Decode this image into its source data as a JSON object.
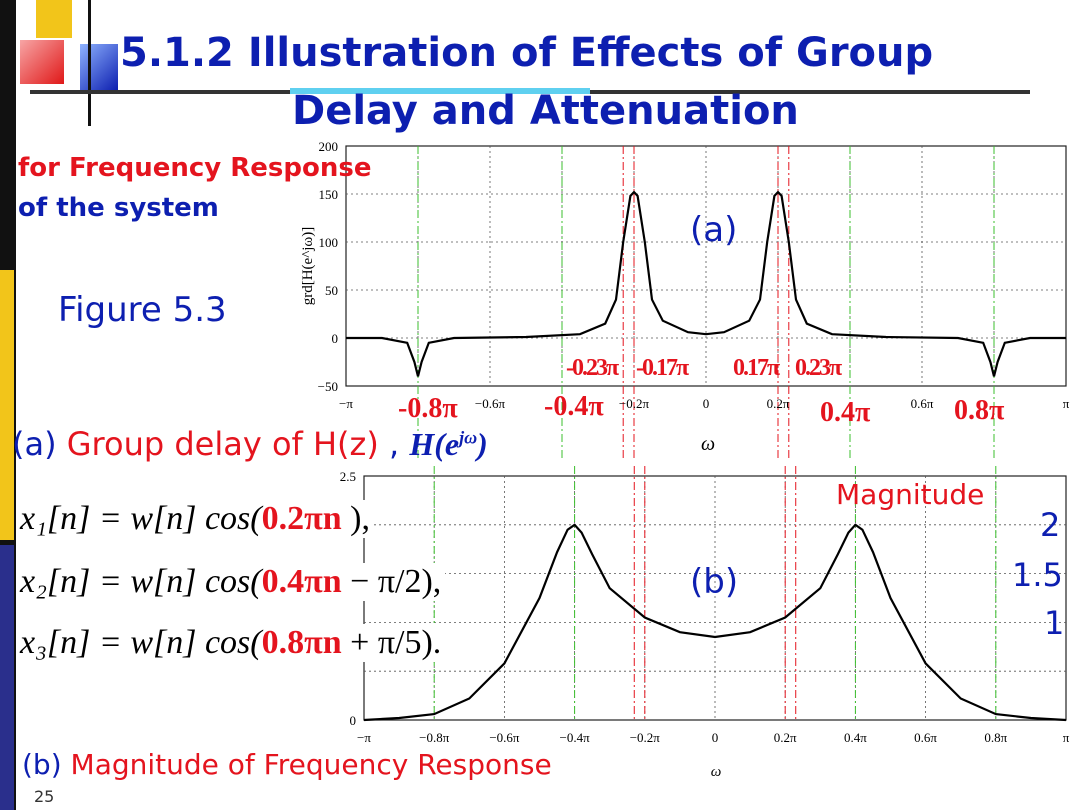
{
  "slide": {
    "title_line1": "5.1.2  Illustration of Effects of Group",
    "title_line2": "Delay and Attenuation",
    "subtitle_red": "for Frequency Response",
    "subtitle_blue": "of the system",
    "figure_label": "Figure 5.3",
    "caption_a_prefix": "(a)",
    "caption_a_text": "Group delay of H(z)",
    "caption_a_comma": ",",
    "caption_a_math": "H(e",
    "caption_a_sup": "jω",
    "caption_a_close": ")",
    "caption_b_prefix": "(b)",
    "caption_b_text": "Magnitude of Frequency Response",
    "page_number": "25",
    "colors": {
      "title": "#0d1fb0",
      "red": "#e4141e",
      "curve": "#000000",
      "guide_red": "#e4141e",
      "guide_green": "#3bbf2c"
    }
  },
  "equations": [
    {
      "lhs": "x₁[n] = w[n] cos(",
      "freq": "0.2πn",
      "rest": " ),"
    },
    {
      "lhs": "x₂[n] = w[n] cos(",
      "freq": "0.4πn",
      "rest": " − π/2),"
    },
    {
      "lhs": "x₃[n] = w[n] cos(",
      "freq": "0.8πn",
      "rest": " + π/5)."
    }
  ],
  "plot_a": {
    "panel_label": "(a)",
    "ylabel": "grd[H(e^jω)]",
    "xlabel": "ω",
    "y_ticks": [
      "200",
      "150",
      "100",
      "50",
      "0",
      "−50"
    ],
    "x_ticks": [
      "−π",
      "−0.6π",
      "−0.2π",
      "0",
      "0.2π",
      "0.6π",
      "π"
    ],
    "x_red_labels": [
      "-0.8π",
      "-0.4π",
      "0.4π",
      "0.8π"
    ],
    "guide_labels": [
      "-0.23π",
      "-0.17π",
      "0.17π",
      "0.23π"
    ]
  },
  "plot_b": {
    "panel_label": "(b)",
    "magnitude_label": "Magnitude",
    "right_ticks": [
      "2",
      "1.5",
      "1"
    ],
    "y_ticks": [
      "2.5",
      "0"
    ],
    "x_ticks": [
      "−π",
      "−0.8π",
      "−0.6π",
      "−0.4π",
      "−0.2π",
      "0",
      "0.2π",
      "0.4π",
      "0.6π",
      "0.8π",
      "π"
    ],
    "xlabel": "ω"
  },
  "chart_data": [
    {
      "type": "line",
      "name": "group delay",
      "xlabel": "ω",
      "ylabel": "grd[H(e^jω)]",
      "ylim": [
        -50,
        200
      ],
      "x_unit": "π",
      "x": [
        -1.0,
        -0.9,
        -0.83,
        -0.81,
        -0.8,
        -0.79,
        -0.77,
        -0.7,
        -0.5,
        -0.35,
        -0.28,
        -0.25,
        -0.23,
        -0.21,
        -0.2,
        -0.19,
        -0.17,
        -0.15,
        -0.12,
        -0.05,
        0,
        0.05,
        0.12,
        0.15,
        0.17,
        0.19,
        0.2,
        0.21,
        0.23,
        0.25,
        0.28,
        0.35,
        0.5,
        0.7,
        0.77,
        0.79,
        0.8,
        0.81,
        0.83,
        0.9,
        1.0
      ],
      "y": [
        0,
        0,
        -5,
        -25,
        -40,
        -25,
        -5,
        0,
        1,
        4,
        15,
        40,
        100,
        148,
        152,
        148,
        100,
        40,
        18,
        6,
        4,
        6,
        18,
        40,
        100,
        148,
        152,
        148,
        100,
        40,
        15,
        4,
        1,
        0,
        -5,
        -25,
        -40,
        -25,
        -5,
        0,
        0
      ],
      "grid": true
    },
    {
      "type": "line",
      "name": "magnitude",
      "xlabel": "ω",
      "ylim": [
        0,
        2.5
      ],
      "x_unit": "π",
      "x": [
        -1.0,
        -0.9,
        -0.8,
        -0.7,
        -0.6,
        -0.5,
        -0.45,
        -0.42,
        -0.4,
        -0.38,
        -0.35,
        -0.3,
        -0.2,
        -0.1,
        0,
        0.1,
        0.2,
        0.3,
        0.35,
        0.38,
        0.4,
        0.42,
        0.45,
        0.5,
        0.6,
        0.7,
        0.8,
        0.9,
        1.0
      ],
      "y": [
        0,
        0.02,
        0.06,
        0.22,
        0.58,
        1.25,
        1.72,
        1.95,
        2.0,
        1.92,
        1.7,
        1.35,
        1.05,
        0.9,
        0.85,
        0.9,
        1.05,
        1.35,
        1.7,
        1.92,
        2.0,
        1.95,
        1.72,
        1.25,
        0.58,
        0.22,
        0.06,
        0.02,
        0
      ],
      "grid": true
    }
  ]
}
